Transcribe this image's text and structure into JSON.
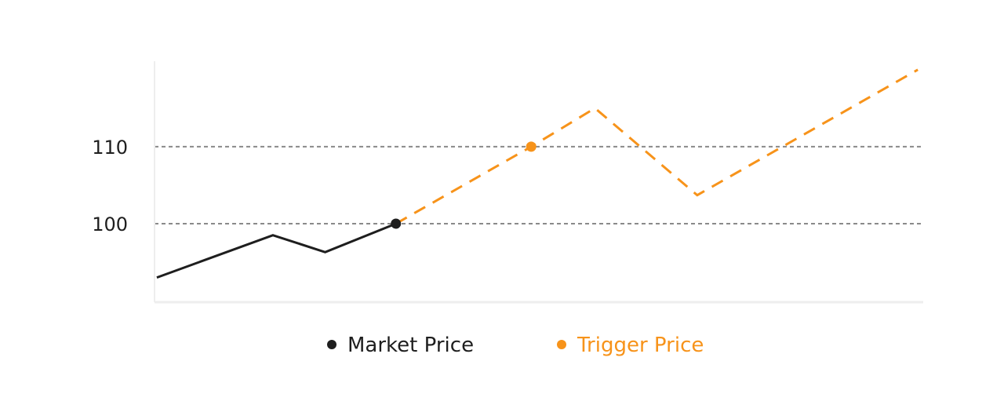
{
  "chart_data": {
    "type": "line",
    "title": "",
    "xlabel": "",
    "ylabel": "",
    "xlim": [
      0,
      100
    ],
    "ylim": [
      89.8,
      121.1
    ],
    "grid": "horizontal dashed at tick values",
    "yticks": [
      100,
      110
    ],
    "ytick_labels": [
      "100",
      "110"
    ],
    "legend_position": "bottom",
    "series": [
      {
        "name": "Market Price",
        "color": "#1e1e1e",
        "style": "solid",
        "points": [
          [
            0.3,
            93
          ],
          [
            15.4,
            98.5
          ],
          [
            22.2,
            96.3
          ],
          [
            31.4,
            100
          ]
        ],
        "markers": [
          [
            31.4,
            100
          ]
        ]
      },
      {
        "name": "Trigger Price",
        "color": "#f7931a",
        "style": "dashed",
        "points": [
          [
            31.4,
            100
          ],
          [
            49,
            110
          ],
          [
            57.3,
            115
          ],
          [
            70.6,
            103.7
          ],
          [
            99.3,
            120
          ]
        ],
        "markers": [
          [
            49,
            110
          ]
        ]
      }
    ]
  }
}
